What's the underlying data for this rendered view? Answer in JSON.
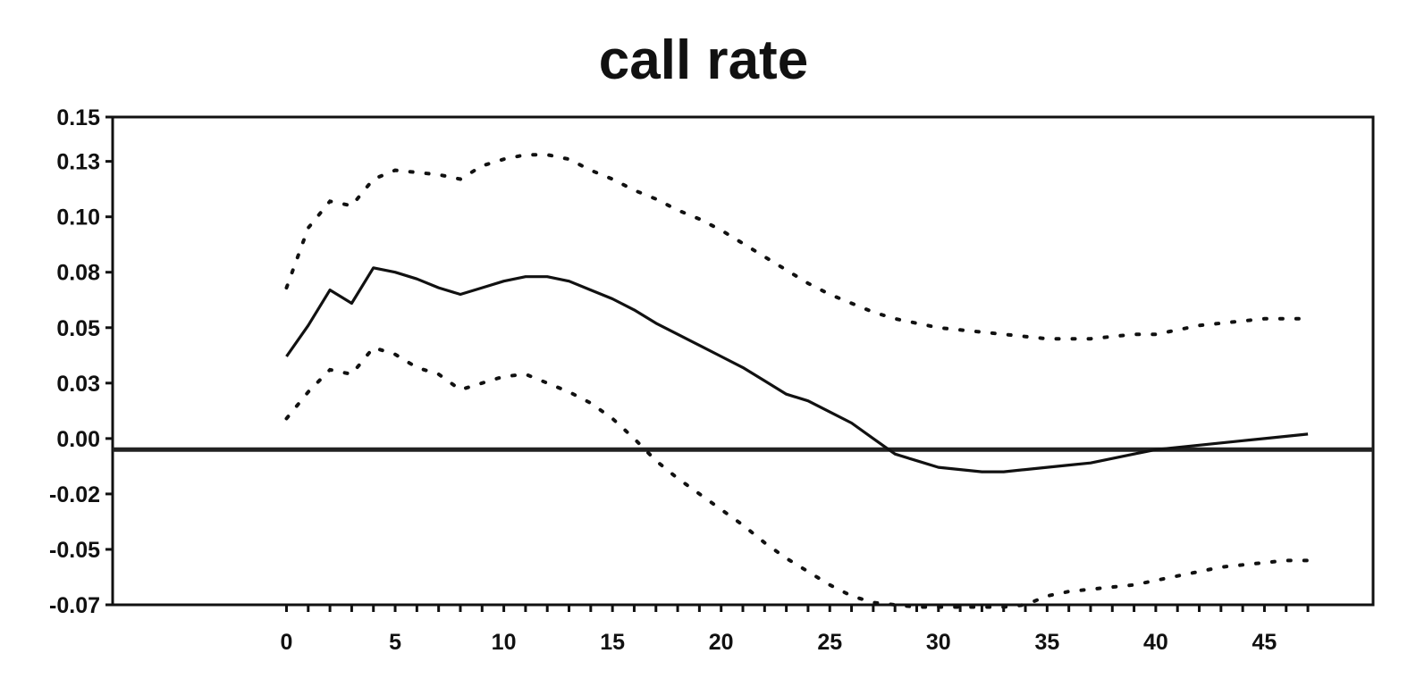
{
  "chart_data": {
    "type": "line",
    "title": "call rate",
    "xlabel": "",
    "ylabel": "",
    "xlim": [
      -8,
      50
    ],
    "ylim": [
      -0.07,
      0.15
    ],
    "x_ticks": [
      0,
      5,
      10,
      15,
      20,
      25,
      30,
      35,
      40,
      45
    ],
    "x_tick_labels": [
      "0",
      "5",
      "10",
      "15",
      "20",
      "25",
      "30",
      "35",
      "40",
      "45"
    ],
    "y_ticks": [
      -0.07,
      -0.045,
      -0.02,
      0.005,
      0.03,
      0.055,
      0.08,
      0.105,
      0.13,
      0.15
    ],
    "y_tick_labels": [
      "-0.07",
      "-0.05",
      "-0.02",
      "0.00",
      "0.03",
      "0.05",
      "0.08",
      "0.10",
      "0.13",
      "0.15"
    ],
    "reference_line_y": 0.0,
    "grid": false,
    "legend": "none",
    "colors": {
      "line": "#111111",
      "background": "#ffffff"
    },
    "series": [
      {
        "style": "solid",
        "x": [
          0,
          1,
          2,
          3,
          4,
          5,
          6,
          7,
          8,
          9,
          10,
          11,
          12,
          13,
          14,
          15,
          16,
          17,
          18,
          19,
          20,
          21,
          22,
          23,
          24,
          25,
          26,
          27,
          28,
          29,
          30,
          31,
          32,
          33,
          34,
          35,
          36,
          37,
          38,
          39,
          40,
          41,
          42,
          43,
          44,
          45,
          46,
          47
        ],
        "values": [
          0.042,
          0.056,
          0.072,
          0.066,
          0.082,
          0.08,
          0.077,
          0.073,
          0.07,
          0.073,
          0.076,
          0.078,
          0.078,
          0.076,
          0.072,
          0.068,
          0.063,
          0.057,
          0.052,
          0.047,
          0.042,
          0.037,
          0.031,
          0.025,
          0.022,
          0.017,
          0.012,
          0.005,
          -0.002,
          -0.005,
          -0.008,
          -0.009,
          -0.01,
          -0.01,
          -0.009,
          -0.008,
          -0.007,
          -0.006,
          -0.004,
          -0.002,
          0.0,
          0.001,
          0.002,
          0.003,
          0.004,
          0.005,
          0.006,
          0.007
        ]
      },
      {
        "style": "dotted",
        "x": [
          0,
          1,
          2,
          3,
          4,
          5,
          6,
          7,
          8,
          9,
          10,
          11,
          12,
          13,
          14,
          15,
          16,
          17,
          18,
          19,
          20,
          21,
          22,
          23,
          24,
          25,
          26,
          27,
          28,
          29,
          30,
          31,
          32,
          33,
          34,
          35,
          36,
          37,
          38,
          39,
          40,
          41,
          42,
          43,
          44,
          45,
          46,
          47
        ],
        "values": [
          0.073,
          0.1,
          0.112,
          0.11,
          0.122,
          0.126,
          0.125,
          0.124,
          0.122,
          0.128,
          0.131,
          0.133,
          0.133,
          0.131,
          0.126,
          0.122,
          0.117,
          0.113,
          0.108,
          0.104,
          0.099,
          0.093,
          0.087,
          0.081,
          0.075,
          0.07,
          0.066,
          0.062,
          0.059,
          0.057,
          0.055,
          0.054,
          0.053,
          0.052,
          0.051,
          0.05,
          0.05,
          0.05,
          0.051,
          0.052,
          0.052,
          0.054,
          0.056,
          0.057,
          0.058,
          0.059,
          0.059,
          0.059
        ]
      },
      {
        "style": "dotted",
        "x": [
          0,
          1,
          2,
          3,
          4,
          5,
          6,
          7,
          8,
          9,
          10,
          11,
          12,
          13,
          14,
          15,
          16,
          17,
          18,
          19,
          20,
          21,
          22,
          23,
          24,
          25,
          26,
          27,
          28,
          29,
          30,
          31,
          32,
          33,
          34,
          35,
          36,
          37,
          38,
          39,
          40,
          41,
          42,
          43,
          44,
          45,
          46,
          47
        ],
        "values": [
          0.014,
          0.026,
          0.036,
          0.034,
          0.046,
          0.043,
          0.037,
          0.034,
          0.027,
          0.03,
          0.033,
          0.034,
          0.03,
          0.026,
          0.021,
          0.014,
          0.005,
          -0.005,
          -0.013,
          -0.02,
          -0.027,
          -0.034,
          -0.042,
          -0.049,
          -0.055,
          -0.061,
          -0.066,
          -0.069,
          -0.07,
          -0.071,
          -0.071,
          -0.071,
          -0.071,
          -0.071,
          -0.07,
          -0.066,
          -0.064,
          -0.063,
          -0.062,
          -0.061,
          -0.059,
          -0.057,
          -0.055,
          -0.053,
          -0.052,
          -0.051,
          -0.05,
          -0.05
        ]
      }
    ]
  }
}
